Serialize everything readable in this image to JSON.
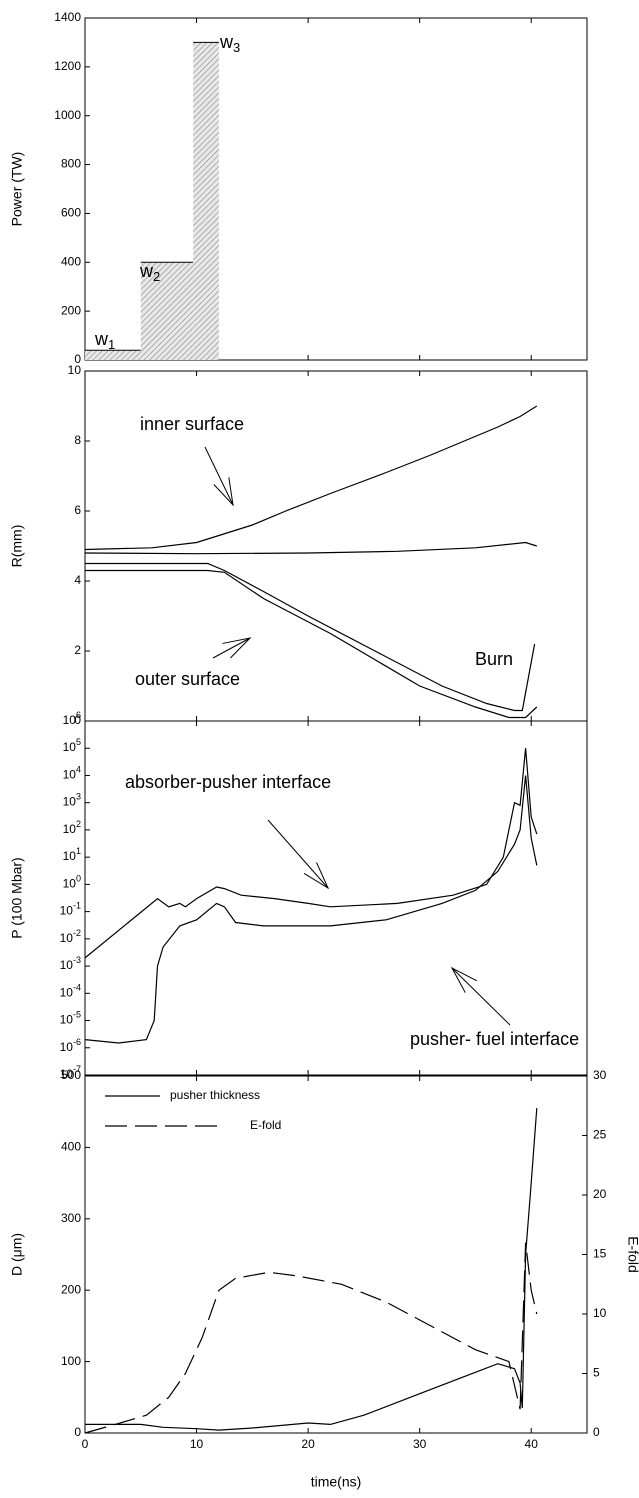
{
  "chart_data": [
    {
      "type": "histogram",
      "ylabel": "Power (TW)",
      "xlim": [
        0,
        45
      ],
      "ylim": [
        0,
        1400
      ],
      "yticks": [
        0,
        200,
        400,
        600,
        800,
        1000,
        1200,
        1400
      ],
      "bins": [
        0,
        5,
        9.7,
        12
      ],
      "values": [
        40,
        400,
        1300
      ],
      "color": "#000000",
      "annotations": [
        {
          "text": "w",
          "subscript": "1"
        },
        {
          "text": "w",
          "subscript": "2"
        },
        {
          "text": "w",
          "subscript": "3"
        }
      ]
    },
    {
      "type": "line",
      "ylabel": "R(mm)",
      "xlim": [
        0,
        45
      ],
      "ylim": [
        0,
        10
      ],
      "yticks": [
        0,
        2,
        4,
        6,
        8,
        10
      ],
      "series": [
        {
          "color": "#000000",
          "x": [
            0,
            6,
            10,
            12,
            15,
            18,
            22,
            27,
            31,
            34,
            37,
            39,
            40.5
          ],
          "values": [
            4.9,
            4.95,
            5.1,
            5.3,
            5.6,
            6.0,
            6.5,
            7.1,
            7.6,
            8.0,
            8.4,
            8.7,
            9.0
          ]
        },
        {
          "color": "#000000",
          "x": [
            0,
            10,
            20,
            28,
            35,
            39.5,
            40.5
          ],
          "values": [
            4.8,
            4.78,
            4.8,
            4.85,
            4.95,
            5.1,
            5.0
          ]
        },
        {
          "color": "#000000",
          "x": [
            0,
            11,
            12.5,
            16,
            20,
            26,
            32,
            36,
            38.5,
            39.2,
            40.3
          ],
          "values": [
            4.5,
            4.5,
            4.3,
            3.7,
            3.0,
            2.0,
            1.0,
            0.5,
            0.3,
            0.3,
            2.2
          ]
        },
        {
          "color": "#000000",
          "x": [
            0,
            11,
            12.5,
            16,
            22,
            30,
            35,
            38,
            39.5,
            40.5
          ],
          "values": [
            4.3,
            4.3,
            4.25,
            3.5,
            2.5,
            1.0,
            0.4,
            0.1,
            0.1,
            0.4
          ]
        }
      ],
      "annotations": [
        {
          "text": "inner surface"
        },
        {
          "text": "outer surface"
        },
        {
          "text": "Burn"
        }
      ]
    },
    {
      "type": "line",
      "ylabel": "P (100 Mbar)",
      "yscale": "log",
      "xlim": [
        0,
        45
      ],
      "ylim": [
        1e-07,
        1000000.0
      ],
      "yticks": [
        {
          "value": 1e-07,
          "label": "10",
          "exponent": "-7"
        },
        {
          "value": 1e-06,
          "label": "10",
          "exponent": "-6"
        },
        {
          "value": 1e-05,
          "label": "10",
          "exponent": "-5"
        },
        {
          "value": 0.0001,
          "label": "10",
          "exponent": "-4"
        },
        {
          "value": 0.001,
          "label": "10",
          "exponent": "-3"
        },
        {
          "value": 0.01,
          "label": "10",
          "exponent": "-2"
        },
        {
          "value": 0.1,
          "label": "10",
          "exponent": "-1"
        },
        {
          "value": 1,
          "label": "10",
          "exponent": "0"
        },
        {
          "value": 10,
          "label": "10",
          "exponent": "1"
        },
        {
          "value": 100,
          "label": "10",
          "exponent": "2"
        },
        {
          "value": 1000,
          "label": "10",
          "exponent": "3"
        },
        {
          "value": 10000,
          "label": "10",
          "exponent": "4"
        },
        {
          "value": 100000,
          "label": "10",
          "exponent": "5"
        },
        {
          "value": 1000000,
          "label": "10",
          "exponent": "6"
        }
      ],
      "series": [
        {
          "color": "#000000",
          "x": [
            0,
            6.5,
            7.5,
            8.5,
            9,
            10,
            11.8,
            12.5,
            14,
            17,
            20,
            22,
            28,
            33,
            36,
            37.5,
            38.5,
            39,
            39.5,
            40,
            40.5
          ],
          "values": [
            0.002,
            0.3,
            0.15,
            0.2,
            0.15,
            0.3,
            0.8,
            0.7,
            0.4,
            0.3,
            0.2,
            0.15,
            0.2,
            0.4,
            1,
            10,
            1000,
            800,
            100000,
            300,
            70
          ]
        },
        {
          "color": "#000000",
          "x": [
            0,
            3,
            5.5,
            6.2,
            6.5,
            7,
            8.5,
            10,
            11.8,
            12.5,
            13.5,
            16,
            22,
            27,
            32,
            35,
            37,
            38.5,
            39,
            39.5,
            40,
            40.5
          ],
          "values": [
            2e-06,
            1.5e-06,
            2e-06,
            1e-05,
            0.001,
            0.005,
            0.03,
            0.05,
            0.2,
            0.15,
            0.04,
            0.03,
            0.03,
            0.05,
            0.2,
            0.6,
            3,
            30,
            100,
            10000,
            50,
            5
          ]
        }
      ],
      "annotations": [
        {
          "text": "absorber-pusher interface"
        },
        {
          "text": "pusher- fuel interface"
        }
      ]
    },
    {
      "type": "line",
      "ylabel": "D (μm)",
      "y2label": "E-fold",
      "xlabel": "time(ns)",
      "xlim": [
        0,
        45
      ],
      "ylim": [
        0,
        500
      ],
      "xticks": [
        0,
        10,
        20,
        30,
        40
      ],
      "yticks": [
        0,
        100,
        200,
        300,
        400,
        500
      ],
      "y2lim": [
        0,
        30
      ],
      "y2ticks": [
        0,
        5,
        10,
        15,
        20,
        25,
        30
      ],
      "legend": "upper left",
      "series": [
        {
          "name": "pusher thickness",
          "color": "#000000",
          "x": [
            0,
            5,
            7,
            10,
            12,
            15,
            20,
            22,
            25,
            30,
            35,
            37,
            38.5,
            39,
            39.2,
            39.5,
            40,
            40.5
          ],
          "values": [
            12,
            12,
            8,
            6,
            4,
            7,
            14,
            12,
            25,
            55,
            85,
            97,
            90,
            70,
            35,
            250,
            350,
            455
          ]
        },
        {
          "name": "E-fold",
          "color": "#000000",
          "dash": true,
          "axis": "y2",
          "x": [
            0,
            3,
            5.5,
            7.5,
            9,
            10.5,
            12,
            13.5,
            16.5,
            19,
            23,
            27,
            31,
            35,
            38,
            39,
            39.5,
            40,
            40.5
          ],
          "values": [
            0,
            0.8,
            1.5,
            3,
            5,
            8,
            12,
            13,
            13.5,
            13.2,
            12.5,
            11,
            9,
            7,
            6,
            2,
            16,
            12,
            10
          ]
        }
      ]
    }
  ]
}
